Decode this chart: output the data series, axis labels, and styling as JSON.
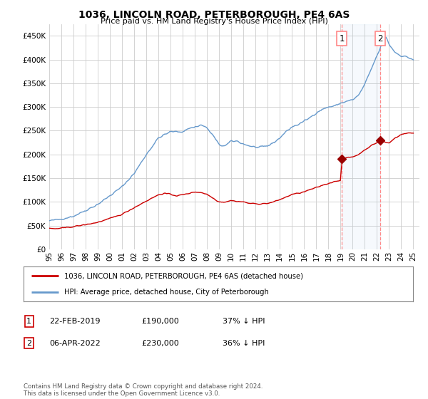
{
  "title": "1036, LINCOLN ROAD, PETERBOROUGH, PE4 6AS",
  "subtitle": "Price paid vs. HM Land Registry's House Price Index (HPI)",
  "ylim": [
    0,
    475000
  ],
  "yticks": [
    0,
    50000,
    100000,
    150000,
    200000,
    250000,
    300000,
    350000,
    400000,
    450000
  ],
  "xlim": [
    1995.0,
    2025.5
  ],
  "background_color": "#ffffff",
  "grid_color": "#cccccc",
  "hpi_color": "#6699cc",
  "price_color": "#cc0000",
  "marker_color": "#990000",
  "dashed_color": "#ff8888",
  "transaction1_x": 2019.12,
  "transaction1_y": 190000,
  "transaction2_x": 2022.27,
  "transaction2_y": 230000,
  "legend_price": "1036, LINCOLN ROAD, PETERBOROUGH, PE4 6AS (detached house)",
  "legend_hpi": "HPI: Average price, detached house, City of Peterborough",
  "note1_date": "22-FEB-2019",
  "note1_price": "£190,000",
  "note1_hpi": "37% ↓ HPI",
  "note2_date": "06-APR-2022",
  "note2_price": "£230,000",
  "note2_hpi": "36% ↓ HPI",
  "footer": "Contains HM Land Registry data © Crown copyright and database right 2024.\nThis data is licensed under the Open Government Licence v3.0.",
  "xticks": [
    1995,
    1996,
    1997,
    1998,
    1999,
    2000,
    2001,
    2002,
    2003,
    2004,
    2005,
    2006,
    2007,
    2008,
    2009,
    2010,
    2011,
    2012,
    2013,
    2014,
    2015,
    2016,
    2017,
    2018,
    2019,
    2020,
    2021,
    2022,
    2023,
    2024,
    2025
  ]
}
